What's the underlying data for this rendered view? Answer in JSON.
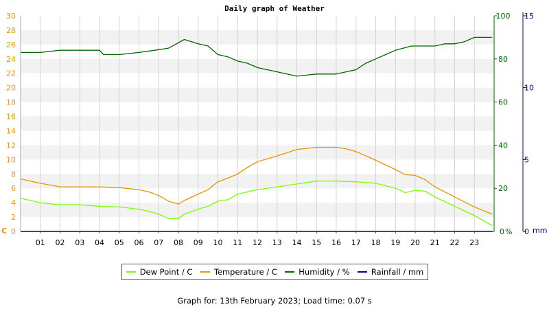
{
  "chart_data": {
    "type": "line",
    "title": "Daily graph of Weather",
    "x_ticks": [
      "01",
      "02",
      "03",
      "04",
      "05",
      "06",
      "07",
      "08",
      "09",
      "10",
      "11",
      "12",
      "13",
      "14",
      "15",
      "16",
      "17",
      "18",
      "19",
      "20",
      "21",
      "22",
      "23"
    ],
    "x_range_hours": [
      0,
      24
    ],
    "axes": {
      "temperature": {
        "unit_label": "C",
        "range": [
          0,
          30
        ],
        "ticks": [
          0,
          2,
          4,
          6,
          8,
          10,
          12,
          14,
          16,
          18,
          20,
          22,
          24,
          26,
          28,
          30
        ],
        "color": "#e69500"
      },
      "humidity": {
        "unit_label": "%",
        "range": [
          0,
          100
        ],
        "ticks": [
          0,
          20,
          40,
          60,
          80,
          100
        ],
        "color": "#006400"
      },
      "rainfall": {
        "unit_label": "mm",
        "range": [
          0,
          15
        ],
        "ticks": [
          0,
          5,
          10,
          15
        ],
        "color": "#00008b"
      }
    },
    "grid": true,
    "legend_position": "bottom",
    "series": [
      {
        "name": "Dew Point / C",
        "color": "#7cfc00",
        "axis": "temperature",
        "hours": [
          0,
          1,
          2,
          3,
          4,
          5,
          6,
          6.5,
          7,
          7.5,
          8,
          8.3,
          9,
          9.5,
          10,
          10.5,
          11,
          12,
          13,
          14,
          15,
          16,
          17,
          18,
          19,
          19.5,
          20,
          20.5,
          21,
          22,
          23,
          23.9
        ],
        "values": [
          4.6,
          4.0,
          3.7,
          3.7,
          3.5,
          3.4,
          3.1,
          2.8,
          2.4,
          1.8,
          1.8,
          2.4,
          3.1,
          3.5,
          4.2,
          4.4,
          5.2,
          5.8,
          6.2,
          6.6,
          7.0,
          7.0,
          6.9,
          6.7,
          6.0,
          5.4,
          5.7,
          5.6,
          4.8,
          3.5,
          2.2,
          0.8
        ]
      },
      {
        "name": "Temperature / C",
        "color": "#e69500",
        "axis": "temperature",
        "hours": [
          0,
          1,
          2,
          3,
          4,
          5,
          6,
          6.5,
          7,
          7.5,
          8,
          8.3,
          9,
          9.5,
          10,
          10.5,
          11,
          11.5,
          12,
          13,
          14,
          15,
          16,
          16.5,
          17,
          18,
          19,
          19.5,
          20,
          20.5,
          21,
          22,
          23,
          23.9
        ],
        "values": [
          7.3,
          6.7,
          6.2,
          6.2,
          6.2,
          6.1,
          5.8,
          5.5,
          5.0,
          4.2,
          3.8,
          4.3,
          5.2,
          5.8,
          6.9,
          7.4,
          8.0,
          8.9,
          9.7,
          10.5,
          11.4,
          11.7,
          11.7,
          11.5,
          11.1,
          9.9,
          8.6,
          7.9,
          7.8,
          7.2,
          6.2,
          4.8,
          3.4,
          2.4
        ]
      },
      {
        "name": "Humidity / %",
        "color": "#006400",
        "axis": "humidity",
        "hours": [
          0,
          1,
          2,
          3,
          4,
          4.2,
          5,
          6,
          6.8,
          7.5,
          7.9,
          8.3,
          9,
          9.5,
          10,
          10.5,
          11,
          11.5,
          12,
          12.5,
          13,
          14,
          15,
          16,
          16.5,
          17,
          17.5,
          18,
          18.5,
          19,
          19.8,
          20.5,
          21,
          21.5,
          22,
          22.5,
          23,
          23.9
        ],
        "values": [
          83,
          83,
          84,
          84,
          84,
          82,
          82,
          83,
          84,
          85,
          87,
          89,
          87,
          86,
          82,
          81,
          79,
          78,
          76,
          75,
          74,
          72,
          73,
          73,
          74,
          75,
          78,
          80,
          82,
          84,
          86,
          86,
          86,
          87,
          87,
          88,
          90,
          90
        ]
      },
      {
        "name": "Rainfall / mm",
        "color": "#00008b",
        "axis": "rainfall",
        "hours": [
          0,
          23.9
        ],
        "values": [
          0,
          0
        ]
      }
    ]
  },
  "footer": "Graph for: 13th February 2023; Load time: 0.07 s"
}
